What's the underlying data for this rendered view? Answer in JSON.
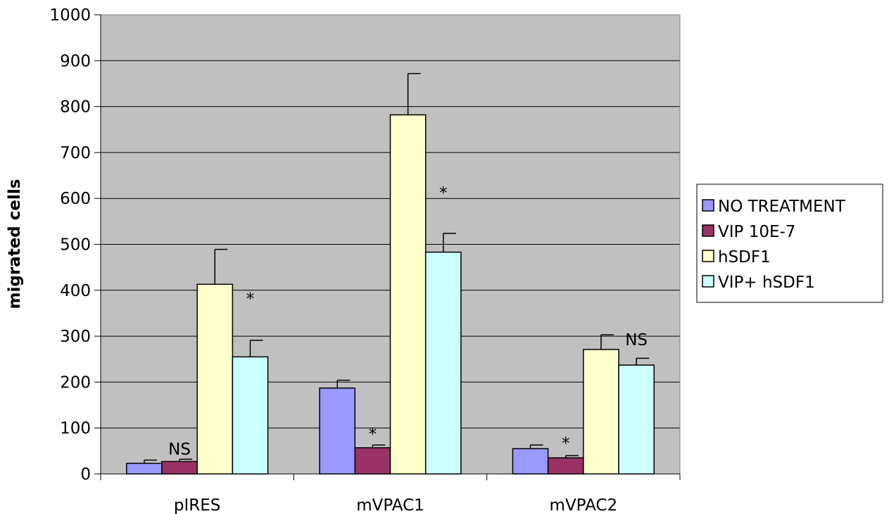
{
  "chart_data": {
    "type": "bar",
    "title": "",
    "xlabel": "",
    "ylabel": "migrated cells",
    "ylim": [
      0,
      1000
    ],
    "yticks": [
      0,
      100,
      200,
      300,
      400,
      500,
      600,
      700,
      800,
      900,
      1000
    ],
    "grid": true,
    "legend_position": "right",
    "plot_background": "#c0c0c0",
    "categories": [
      "pIRES",
      "mVPAC1",
      "mVPAC2"
    ],
    "series": [
      {
        "name": "NO TREATMENT",
        "color": "#9999ff",
        "values": [
          23,
          187,
          55
        ],
        "errors": [
          7,
          17,
          8
        ]
      },
      {
        "name": "VIP 10E-7",
        "color": "#993366",
        "values": [
          27,
          57,
          35
        ],
        "errors": [
          5,
          6,
          5
        ]
      },
      {
        "name": "hSDF1",
        "color": "#ffffcc",
        "values": [
          413,
          782,
          271
        ],
        "errors": [
          76,
          90,
          32
        ]
      },
      {
        "name": "VIP+ hSDF1",
        "color": "#ccffff",
        "values": [
          255,
          483,
          237
        ],
        "errors": [
          36,
          41,
          15
        ]
      }
    ],
    "annotations": [
      {
        "text": "NS",
        "category": 0,
        "series": 1,
        "y": 42
      },
      {
        "text": "*",
        "category": 0,
        "series": 3,
        "y": 370
      },
      {
        "text": "*",
        "category": 1,
        "series": 1,
        "y": 75
      },
      {
        "text": "*",
        "category": 1,
        "series": 3,
        "y": 600
      },
      {
        "text": "*",
        "category": 2,
        "series": 1,
        "y": 55
      },
      {
        "text": "NS",
        "category": 2,
        "series": 3,
        "y": 280
      }
    ]
  }
}
